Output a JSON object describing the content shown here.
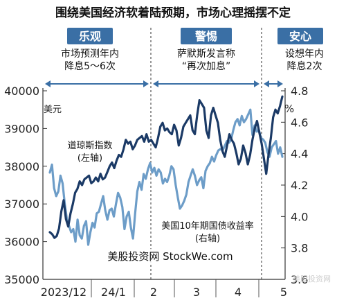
{
  "title": "围绕美国经济软着陆预期，市场心理摇摆不定",
  "phases": [
    {
      "label": "乐观",
      "note_lines": [
        "市场预测年内",
        "降息5～6次"
      ]
    },
    {
      "label": "警惕",
      "note_lines": [
        "萨默斯发言称",
        "“再次加息”"
      ]
    },
    {
      "label": "安心",
      "note_lines": [
        "设想年内",
        "降息2次"
      ]
    }
  ],
  "watermark": "美股投资网 StockWe.com",
  "corner_watermark": "美股投资网",
  "colors": {
    "dow": "#1b3a66",
    "yield": "#6d9dc8",
    "banner": "#3a6fa5",
    "axis_text": "#222222"
  },
  "chart_data": {
    "type": "line",
    "title": "围绕美国经济软着陆预期，市场心理摇摆不定",
    "x_tick_labels": [
      "2023/12",
      "24/1",
      "2",
      "3",
      "4",
      "5"
    ],
    "y_left": {
      "label": "美元",
      "range": [
        35000,
        40000
      ],
      "ticks": [
        35000,
        36000,
        37000,
        38000,
        39000,
        40000
      ]
    },
    "y_right": {
      "label": "%",
      "range": [
        3.6,
        4.8
      ],
      "ticks": [
        3.6,
        3.8,
        4.0,
        4.2,
        4.4,
        4.6,
        4.8
      ]
    },
    "series": [
      {
        "name": "道琼斯指数",
        "axis_note": "(左轴)",
        "axis": "left",
        "values": [
          36250,
          36200,
          36100,
          36150,
          36350,
          36800,
          37100,
          36600,
          36400,
          36750,
          37000,
          37300,
          37400,
          37600,
          37500,
          37650,
          37700,
          37750,
          37550,
          37600,
          37700,
          37600,
          37800,
          37650,
          37700,
          37850,
          38000,
          38100,
          37950,
          38150,
          38300,
          38250,
          38450,
          38700,
          38600,
          38650,
          38450,
          38550,
          38700,
          38750,
          38800,
          38650,
          38850,
          38650,
          38700,
          38600,
          38500,
          38750,
          39050,
          39150,
          38950,
          39000,
          38900,
          38850,
          39100,
          38950,
          38550,
          38750,
          39050,
          39150,
          39250,
          39350,
          38950,
          38850,
          39350,
          39750,
          39650,
          39550,
          38950,
          38750,
          39350,
          39550,
          39350,
          39150,
          38700,
          38400,
          38250,
          38550,
          38850,
          38700,
          38600,
          38350,
          38050,
          38200,
          38550,
          38350,
          38050,
          38300,
          38700,
          39000,
          39200,
          38900,
          38600,
          38200,
          37800,
          38300,
          38750,
          39300,
          39500,
          39400,
          39600,
          39850
        ]
      },
      {
        "name": "美国10年期国债收益率",
        "axis_note": "(右轴)",
        "axis": "right",
        "values": [
          4.28,
          4.33,
          4.18,
          4.13,
          4.16,
          4.26,
          4.21,
          4.08,
          3.98,
          3.94,
          3.9,
          3.92,
          3.84,
          3.98,
          3.88,
          3.86,
          3.94,
          3.97,
          3.82,
          3.9,
          3.96,
          3.93,
          4.02,
          4.03,
          4.08,
          4.13,
          4.04,
          3.98,
          4.04,
          4.05,
          4.0,
          4.08,
          4.15,
          4.12,
          4.06,
          3.92,
          4.0,
          4.03,
          3.93,
          3.86,
          4.02,
          4.16,
          4.22,
          4.17,
          4.27,
          4.24,
          4.3,
          4.34,
          4.28,
          4.31,
          4.26,
          4.3,
          4.28,
          4.21,
          4.24,
          4.22,
          4.26,
          4.32,
          4.3,
          4.2,
          4.12,
          4.05,
          4.07,
          4.1,
          4.14,
          4.22,
          4.26,
          4.3,
          4.26,
          4.2,
          4.23,
          4.25,
          4.18,
          4.29,
          4.32,
          4.34,
          4.38,
          4.35,
          4.39,
          4.42,
          4.43,
          4.42,
          4.45,
          4.48,
          4.47,
          4.49,
          4.55,
          4.6,
          4.62,
          4.58,
          4.64,
          4.6,
          4.62,
          4.65,
          4.68,
          4.52,
          4.58,
          4.54,
          4.55,
          4.5,
          4.49,
          4.47,
          4.41,
          4.38,
          4.44,
          4.46,
          4.48,
          4.4,
          4.44,
          4.38
        ]
      }
    ],
    "legend": "inline labels"
  }
}
